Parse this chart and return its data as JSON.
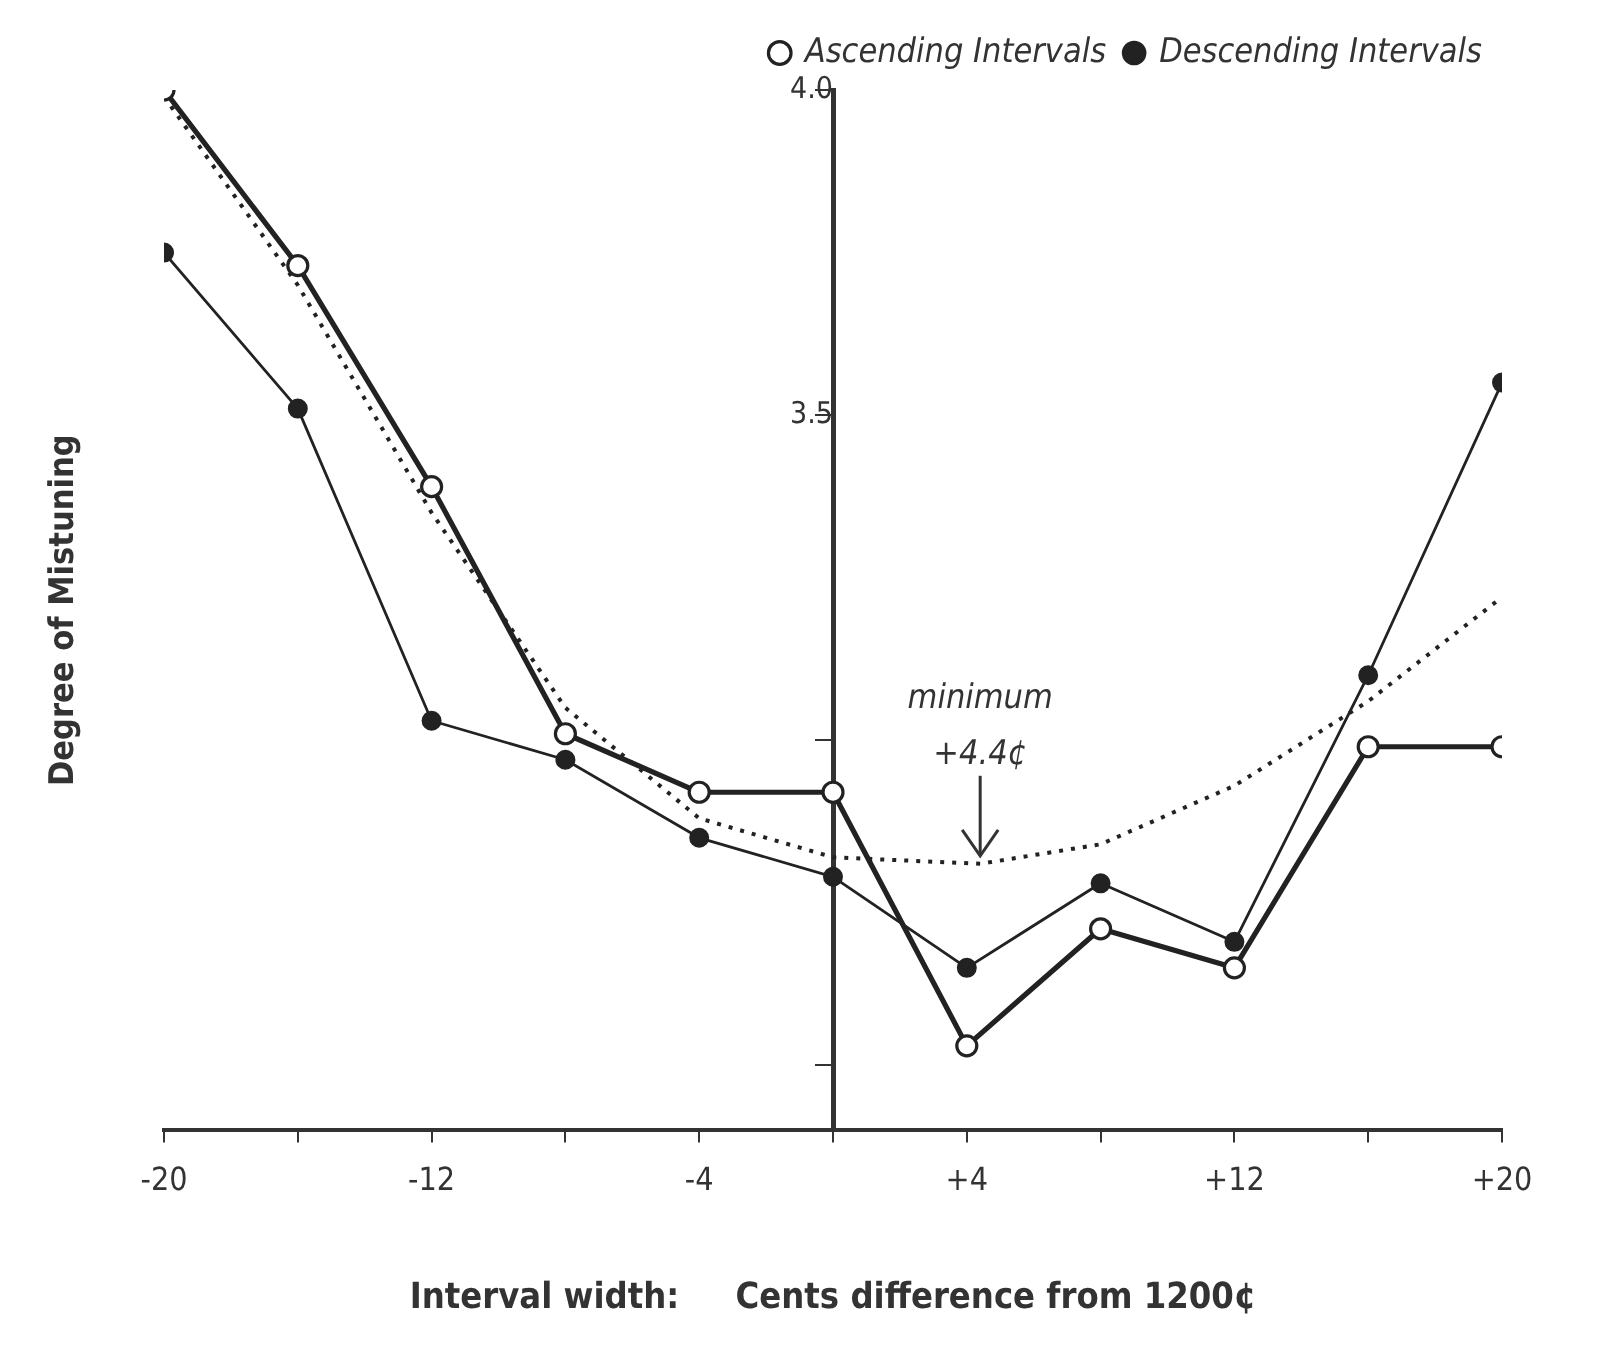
{
  "chart_data": {
    "type": "line",
    "xlabel": "Interval width:     Cents difference from 1200¢",
    "ylabel": "Degree of Mistuning",
    "x": [
      -20,
      -16,
      -12,
      -8,
      -4,
      0,
      4,
      8,
      12,
      16,
      20
    ],
    "series": [
      {
        "name": "Ascending Intervals",
        "color": "#222222",
        "marker": "circle",
        "values": [
          4.0,
          3.73,
          3.39,
          3.01,
          2.92,
          2.92,
          2.53,
          2.71,
          2.65,
          2.99,
          2.99
        ]
      },
      {
        "name": "Descending Intervals",
        "color": "#222222",
        "marker": "circle",
        "values": [
          3.75,
          3.51,
          3.03,
          2.97,
          2.85,
          2.79,
          2.65,
          2.78,
          2.69,
          3.1,
          3.55
        ]
      },
      {
        "color": "#222222",
        "marker": "none",
        "line_style": "dotted",
        "x": [
          -20,
          -16,
          -12,
          -8,
          -4,
          0,
          4.4,
          8,
          12,
          16,
          20
        ],
        "values": [
          3.99,
          3.7,
          3.35,
          3.05,
          2.88,
          2.82,
          2.81,
          2.84,
          2.93,
          3.06,
          3.22
        ]
      }
    ],
    "xlim": [
      -20,
      20
    ],
    "xticks": [
      -20,
      {
        "value": -16,
        "label": null
      },
      -12,
      {
        "value": -8,
        "label": null
      },
      -4,
      {
        "value": 0,
        "label": null
      },
      {
        "value": 4,
        "label": "+4"
      },
      {
        "value": 8,
        "label": null
      },
      {
        "value": 12,
        "label": "+12"
      },
      {
        "value": 16,
        "label": null
      },
      {
        "value": 20,
        "label": "+20"
      }
    ],
    "ylim": [
      2.4,
      4.0
    ],
    "yticks": [
      {
        "value": 2.5,
        "label": null
      },
      {
        "value": 3,
        "label": null
      },
      3.5,
      {
        "value": 4,
        "label": "4.0"
      }
    ],
    "grid": false,
    "legend": "top right",
    "annotations": [
      {
        "text": "minimum +4.4¢",
        "x": 4.4,
        "y": 2.81
      }
    ]
  }
}
